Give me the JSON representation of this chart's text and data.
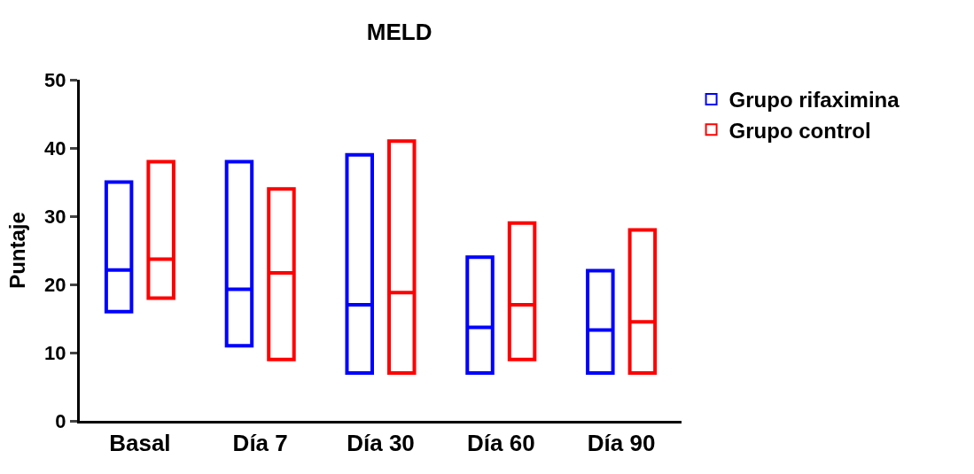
{
  "chart_data": {
    "type": "box",
    "title": "MELD",
    "ylabel": "Puntaje",
    "categories": [
      "Basal",
      "Día 7",
      "Día 30",
      "Día 60",
      "Día 90"
    ],
    "ylim": [
      0,
      50
    ],
    "yticks": [
      0,
      10,
      20,
      30,
      40,
      50
    ],
    "legend": "top right",
    "series": [
      {
        "name": "Grupo rifaximina",
        "color": "#0000ff",
        "boxes": [
          {
            "low": 16,
            "q1": 16,
            "median": 22.1,
            "q3": 35,
            "high": 35
          },
          {
            "low": 11,
            "q1": 11,
            "median": 19.3,
            "q3": 38,
            "high": 38
          },
          {
            "low": 7,
            "q1": 7,
            "median": 17,
            "q3": 39,
            "high": 39
          },
          {
            "low": 7,
            "q1": 7,
            "median": 13.7,
            "q3": 24,
            "high": 24
          },
          {
            "low": 7,
            "q1": 7,
            "median": 13.3,
            "q3": 22,
            "high": 22
          }
        ]
      },
      {
        "name": "Grupo control",
        "color": "#ff0000",
        "boxes": [
          {
            "low": 18,
            "q1": 18,
            "median": 23.7,
            "q3": 38,
            "high": 38
          },
          {
            "low": 9,
            "q1": 9,
            "median": 21.7,
            "q3": 34,
            "high": 34
          },
          {
            "low": 7,
            "q1": 7,
            "median": 18.8,
            "q3": 41,
            "high": 41
          },
          {
            "low": 9,
            "q1": 9,
            "median": 17,
            "q3": 29,
            "high": 29
          },
          {
            "low": 7,
            "q1": 7,
            "median": 14.5,
            "q3": 28,
            "high": 28
          }
        ]
      }
    ]
  }
}
